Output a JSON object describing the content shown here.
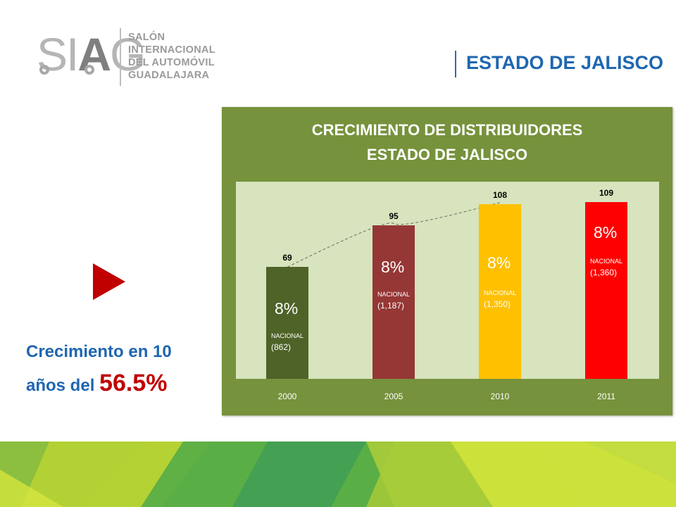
{
  "logo": {
    "wordmark_1": "SI",
    "wordmark_2": "A",
    "wordmark_3": "G",
    "lines": [
      "SALÓN",
      "INTERNACIONAL",
      "DEL AUTOMÓVIL",
      "GUADALAJARA"
    ]
  },
  "header": {
    "title": "ESTADO DE JALISCO"
  },
  "chart_data": {
    "type": "bar",
    "title": "CRECIMIENTO DE DISTRIBUIDORES",
    "subtitle": "ESTADO DE JALISCO",
    "categories": [
      "2000",
      "2005",
      "2010",
      "2011"
    ],
    "values": [
      69,
      95,
      108,
      109
    ],
    "bar_colors": [
      "#4f6228",
      "#953735",
      "#ffc000",
      "#ff0000"
    ],
    "annotations": [
      {
        "pct": "8%",
        "label": "NACIONAL",
        "national": "(862)"
      },
      {
        "pct": "8%",
        "label": "NACIONAL",
        "national": "(1,187)"
      },
      {
        "pct": "8%",
        "label": "NACIONAL",
        "national": "(1,350)"
      },
      {
        "pct": "8%",
        "label": "NACIONAL",
        "national": "(1,360)"
      }
    ],
    "trendline": "dashed",
    "ylim": [
      0,
      110
    ]
  },
  "summary": {
    "line1": "Crecimiento en 10",
    "line2": "años del",
    "highlight": "56.5%"
  },
  "colors": {
    "accent_blue": "#1f66b0",
    "accent_red": "#c00000",
    "chart_bg": "#76923c",
    "plot_bg": "#d7e4bd"
  }
}
